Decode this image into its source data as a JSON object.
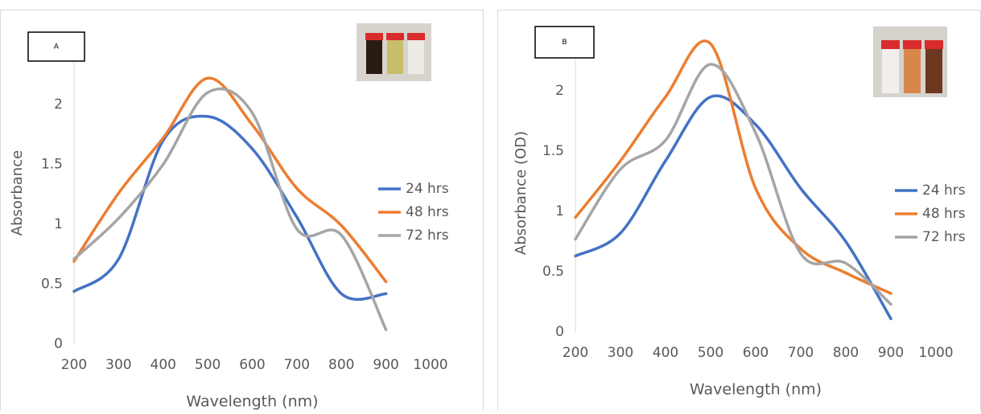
{
  "chart_data": [
    {
      "type": "line",
      "title": "A",
      "x_label": "Wavelength (nm)",
      "y_label": "Absorbance",
      "x": [
        200,
        300,
        400,
        500,
        600,
        700,
        800,
        900
      ],
      "series": [
        {
          "name": "24 hrs",
          "color": "#4472c4",
          "values": [
            0.44,
            0.71,
            1.7,
            1.9,
            1.63,
            1.06,
            0.42,
            0.42
          ]
        },
        {
          "name": "48 hrs",
          "color": "#ed7d31",
          "values": [
            0.69,
            1.26,
            1.72,
            2.22,
            1.83,
            1.3,
            0.99,
            0.52
          ]
        },
        {
          "name": "72 hrs",
          "color": "#a5a5a5",
          "values": [
            0.71,
            1.05,
            1.5,
            2.1,
            1.93,
            0.96,
            0.91,
            0.12
          ]
        }
      ],
      "xlim": [
        200,
        1000
      ],
      "xticks": [
        200,
        300,
        400,
        500,
        600,
        700,
        800,
        900,
        1000
      ],
      "ylim": [
        0,
        2.5
      ],
      "yticks": [
        0,
        0.5,
        1,
        1.5,
        2
      ],
      "legend": "right",
      "grid": false
    },
    {
      "type": "line",
      "title": "B",
      "x_label": "Wavelength (nm)",
      "y_label": "Absorbance (OD)",
      "x": [
        200,
        300,
        400,
        500,
        600,
        700,
        800,
        900
      ],
      "series": [
        {
          "name": "24 hrs",
          "color": "#4472c4",
          "values": [
            0.63,
            0.82,
            1.42,
            1.95,
            1.72,
            1.19,
            0.75,
            0.11
          ]
        },
        {
          "name": "48 hrs",
          "color": "#ed7d31",
          "values": [
            0.95,
            1.42,
            1.95,
            2.39,
            1.19,
            0.69,
            0.49,
            0.32
          ]
        },
        {
          "name": "72 hrs",
          "color": "#a5a5a5",
          "values": [
            0.77,
            1.35,
            1.59,
            2.22,
            1.65,
            0.65,
            0.57,
            0.23
          ]
        }
      ],
      "xlim": [
        200,
        1000
      ],
      "xticks": [
        200,
        300,
        400,
        500,
        600,
        700,
        800,
        900,
        1000
      ],
      "ylim": [
        0,
        2.5
      ],
      "yticks": [
        0,
        0.5,
        1,
        1.5,
        2
      ],
      "legend": "right",
      "grid": false
    }
  ]
}
